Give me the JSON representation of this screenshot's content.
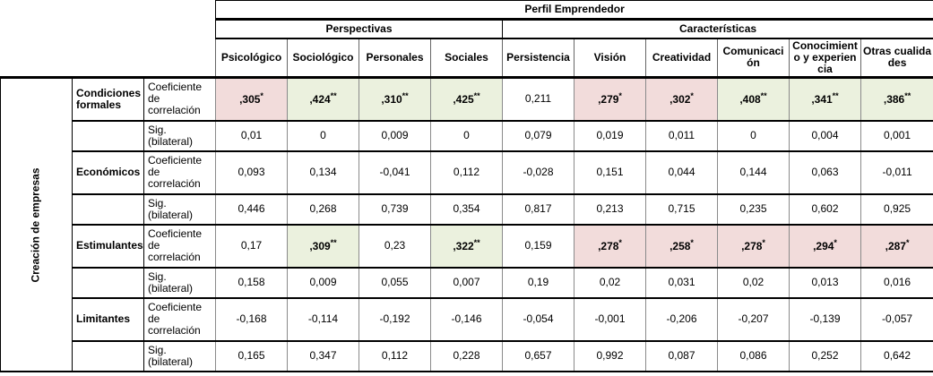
{
  "table": {
    "title": "Perfil Emprendedor",
    "row_axis_label": "Creación de empresas",
    "colors": {
      "highlight_pink": "#f2dcdb",
      "highlight_green": "#ebf1de"
    },
    "col_groups": [
      {
        "label": "Perspectivas",
        "columns": [
          "Psicológico",
          "Sociológico",
          "Personales",
          "Sociales"
        ]
      },
      {
        "label": "Características",
        "columns": [
          "Persistencia",
          "Visión",
          "Creatividad",
          "Comunicación",
          "Conocimiento y experiencia",
          "Otras cualidades"
        ]
      }
    ],
    "stat_labels": {
      "coef": "Coeficiente de correlación",
      "sig": "Sig. (bilateral)"
    },
    "row_groups": [
      {
        "label": "Condiciones formales",
        "coef": [
          {
            "v": ",305",
            "sup": "*",
            "hl": "pink"
          },
          {
            "v": ",424",
            "sup": "**",
            "hl": "green"
          },
          {
            "v": ",310",
            "sup": "**",
            "hl": "green"
          },
          {
            "v": ",425",
            "sup": "**",
            "hl": "green"
          },
          {
            "v": "0,211"
          },
          {
            "v": ",279",
            "sup": "*",
            "hl": "pink"
          },
          {
            "v": ",302",
            "sup": "*",
            "hl": "pink"
          },
          {
            "v": ",408",
            "sup": "**",
            "hl": "green"
          },
          {
            "v": ",341",
            "sup": "**",
            "hl": "green"
          },
          {
            "v": ",386",
            "sup": "**",
            "hl": "green"
          }
        ],
        "sig": [
          "0,01",
          "0",
          "0,009",
          "0",
          "0,079",
          "0,019",
          "0,011",
          "0",
          "0,004",
          "0,001"
        ]
      },
      {
        "label": "Económicos",
        "coef": [
          {
            "v": "0,093"
          },
          {
            "v": "0,134"
          },
          {
            "v": "-0,041"
          },
          {
            "v": "0,112"
          },
          {
            "v": "-0,028"
          },
          {
            "v": "0,151"
          },
          {
            "v": "0,044"
          },
          {
            "v": "0,144"
          },
          {
            "v": "0,063"
          },
          {
            "v": "-0,011"
          }
        ],
        "sig": [
          "0,446",
          "0,268",
          "0,739",
          "0,354",
          "0,817",
          "0,213",
          "0,715",
          "0,235",
          "0,602",
          "0,925"
        ]
      },
      {
        "label": "Estimulantes",
        "coef": [
          {
            "v": "0,17"
          },
          {
            "v": ",309",
            "sup": "**",
            "hl": "green"
          },
          {
            "v": "0,23"
          },
          {
            "v": ",322",
            "sup": "**",
            "hl": "green"
          },
          {
            "v": "0,159"
          },
          {
            "v": ",278",
            "sup": "*",
            "hl": "pink"
          },
          {
            "v": ",258",
            "sup": "*",
            "hl": "pink"
          },
          {
            "v": ",278",
            "sup": "*",
            "hl": "pink"
          },
          {
            "v": ",294",
            "sup": "*",
            "hl": "pink"
          },
          {
            "v": ",287",
            "sup": "*",
            "hl": "pink"
          }
        ],
        "sig": [
          "0,158",
          "0,009",
          "0,055",
          "0,007",
          "0,19",
          "0,02",
          "0,031",
          "0,02",
          "0,013",
          "0,016"
        ]
      },
      {
        "label": "Limitantes",
        "coef": [
          {
            "v": "-0,168"
          },
          {
            "v": "-0,114"
          },
          {
            "v": "-0,192"
          },
          {
            "v": "-0,146"
          },
          {
            "v": "-0,054"
          },
          {
            "v": "-0,001"
          },
          {
            "v": "-0,206"
          },
          {
            "v": "-0,207"
          },
          {
            "v": "-0,139"
          },
          {
            "v": "-0,057"
          }
        ],
        "sig": [
          "0,165",
          "0,347",
          "0,112",
          "0,228",
          "0,657",
          "0,992",
          "0,087",
          "0,086",
          "0,252",
          "0,642"
        ]
      }
    ]
  }
}
